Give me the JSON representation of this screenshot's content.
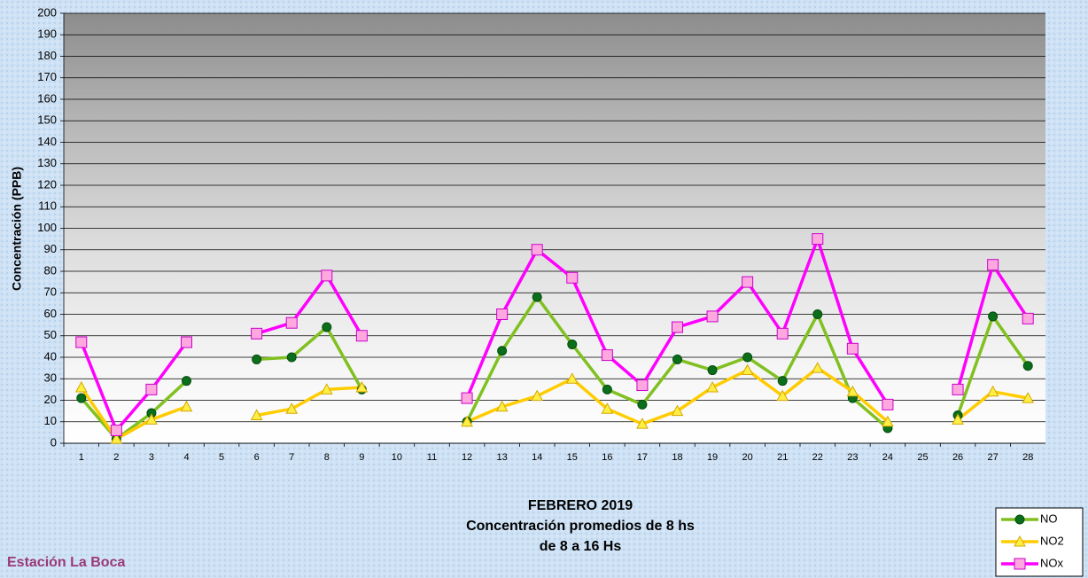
{
  "chart_data": {
    "type": "line",
    "title": "FEBRERO 2019",
    "subtitle": [
      "Concentración promedios de 8 hs",
      "de 8 a 16 Hs"
    ],
    "annotation": "Estación La Boca",
    "y_label": "Concentración (PPB)",
    "categories": [
      "1",
      "2",
      "3",
      "4",
      "5",
      "6",
      "7",
      "8",
      "9",
      "10",
      "11",
      "12",
      "13",
      "14",
      "15",
      "16",
      "17",
      "18",
      "19",
      "20",
      "21",
      "22",
      "23",
      "24",
      "25",
      "26",
      "27",
      "28"
    ],
    "series": [
      {
        "name": "NO",
        "color": "#80c020",
        "marker": "circle",
        "marker_color": "#0b6e1a",
        "values": [
          21,
          2,
          14,
          29,
          null,
          39,
          40,
          54,
          25,
          null,
          null,
          10,
          43,
          68,
          46,
          25,
          18,
          39,
          34,
          40,
          29,
          60,
          21,
          7,
          null,
          13,
          59,
          36
        ]
      },
      {
        "name": "NO2",
        "color": "#ffcc00",
        "marker": "triangle",
        "marker_color": "#ffee44",
        "values": [
          26,
          2,
          11,
          17,
          null,
          13,
          16,
          25,
          26,
          null,
          null,
          10,
          17,
          22,
          30,
          16,
          9,
          15,
          26,
          34,
          22,
          35,
          24,
          10,
          null,
          11,
          24,
          21
        ]
      },
      {
        "name": "NOx",
        "color": "#ff00ff",
        "marker": "square",
        "marker_color": "#ffa8e0",
        "values": [
          47,
          6,
          25,
          47,
          null,
          51,
          56,
          78,
          50,
          null,
          null,
          21,
          60,
          90,
          77,
          41,
          27,
          54,
          59,
          75,
          51,
          95,
          44,
          18,
          null,
          25,
          83,
          58
        ]
      }
    ],
    "ylim": [
      0,
      200
    ],
    "yticks": [
      0,
      10,
      20,
      30,
      40,
      50,
      60,
      70,
      80,
      90,
      100,
      110,
      120,
      130,
      140,
      150,
      160,
      170,
      180,
      190,
      200
    ],
    "grid": true,
    "legend": "bottom-right"
  }
}
